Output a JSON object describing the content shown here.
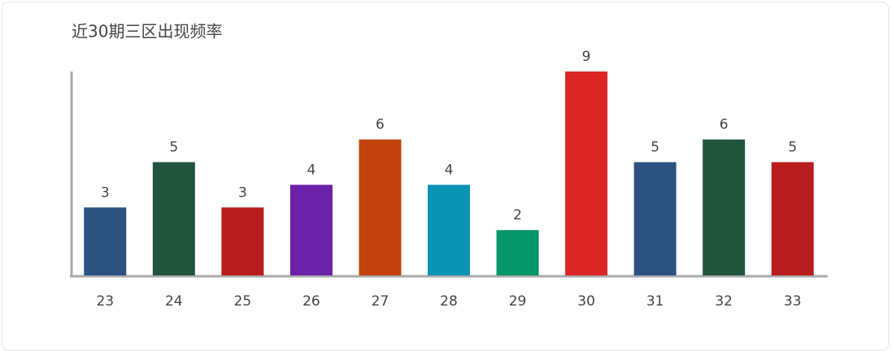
{
  "chart_data": {
    "type": "bar",
    "title": "近30期三区出现频率",
    "categories": [
      "23",
      "24",
      "25",
      "26",
      "27",
      "28",
      "29",
      "30",
      "31",
      "32",
      "33"
    ],
    "values": [
      3,
      5,
      3,
      4,
      6,
      4,
      2,
      9,
      5,
      6,
      5
    ],
    "colors": [
      "#2c5282",
      "#22543d",
      "#b91c1c",
      "#6b21a8",
      "#c2410c",
      "#0b93b5",
      "#059669",
      "#dc2626",
      "#2c5282",
      "#22543d",
      "#b91c1c"
    ],
    "ylim": [
      0,
      9
    ],
    "grid": false
  }
}
